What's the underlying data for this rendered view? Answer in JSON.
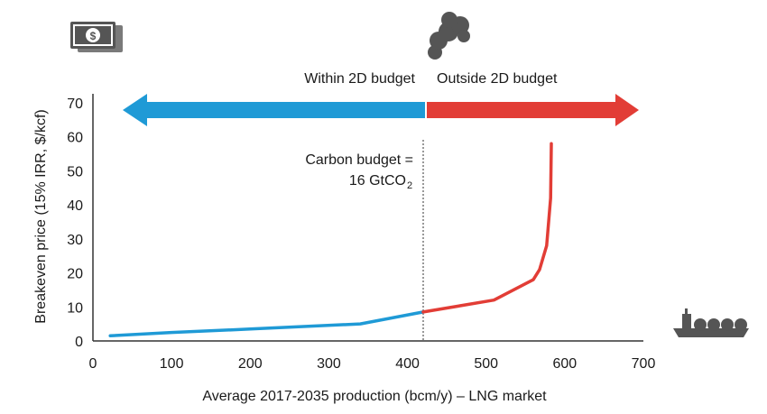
{
  "colors": {
    "within": "#1f9ad6",
    "outside": "#e23d36",
    "icon": "#555555",
    "axis": "#333333"
  },
  "icons": {
    "money": "money-icon",
    "smoke": "smoke-cloud-icon",
    "ship": "lng-ship-icon",
    "currency_symbol": "$"
  },
  "labels": {
    "within": "Within 2D budget",
    "outside": "Outside 2D budget",
    "budget_line1": "Carbon budget =",
    "budget_line2": "16 GtCO",
    "budget_sub": "2"
  },
  "chart_data": {
    "type": "line",
    "title": "",
    "xlabel": "Average 2017-2035 production (bcm/y) – LNG market",
    "ylabel": "Breakeven price (15% IRR, $/kcf)",
    "xlim": [
      0,
      700
    ],
    "ylim": [
      0,
      70
    ],
    "xticks": [
      0,
      100,
      200,
      300,
      400,
      500,
      600,
      700
    ],
    "yticks": [
      0,
      10,
      20,
      30,
      40,
      50,
      60,
      70
    ],
    "grid": false,
    "budget_threshold_x": 420,
    "series": [
      {
        "segment": "within",
        "points": [
          [
            22,
            1.5
          ],
          [
            100,
            2.5
          ],
          [
            200,
            3.5
          ],
          [
            340,
            5
          ],
          [
            420,
            8.5
          ]
        ]
      },
      {
        "segment": "outside",
        "points": [
          [
            420,
            8.5
          ],
          [
            510,
            12
          ],
          [
            560,
            18
          ],
          [
            568,
            21
          ],
          [
            577,
            28
          ],
          [
            582,
            42
          ],
          [
            583,
            58
          ]
        ]
      }
    ]
  }
}
